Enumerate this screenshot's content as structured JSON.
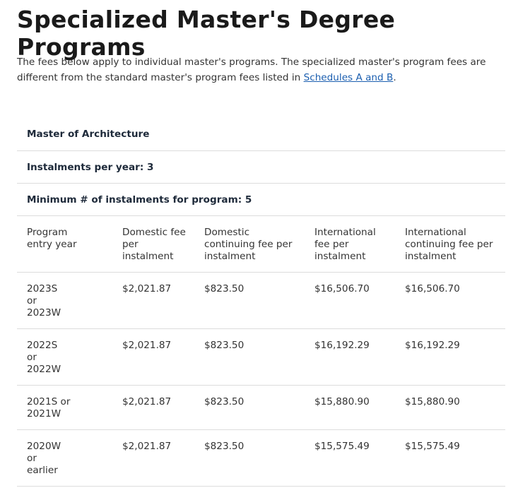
{
  "title": "Specialized Master's Degree Programs",
  "intro": {
    "text_before": "The fees below apply to individual master's programs. The specialized master's program fees are different from the standard master's program fees listed in ",
    "link": "Schedules A and B",
    "text_after": "."
  },
  "program": {
    "name": "Master of Architecture",
    "instalments_per_year": "Instalments per year: 3",
    "min_instalments": "Minimum # of instalments for program: 5"
  },
  "table": {
    "headers": [
      "Program entry year",
      "Domestic fee per instalment",
      "Domestic continuing fee per instalment",
      "International fee per instalment",
      "International continuing fee per instalment"
    ],
    "rows": [
      [
        "2023S or 2023W",
        "$2,021.87",
        "$823.50",
        "$16,506.70",
        "$16,506.70"
      ],
      [
        "2022S or 2022W",
        "$2,021.87",
        "$823.50",
        "$16,192.29",
        "$16,192.29"
      ],
      [
        "2021S or 2021W",
        "$2,021.87",
        "$823.50",
        "$15,880.90",
        "$15,880.90"
      ],
      [
        "2020W or earlier",
        "$2,021.87",
        "$823.50",
        "$15,575.49",
        "$15,575.49"
      ]
    ]
  }
}
